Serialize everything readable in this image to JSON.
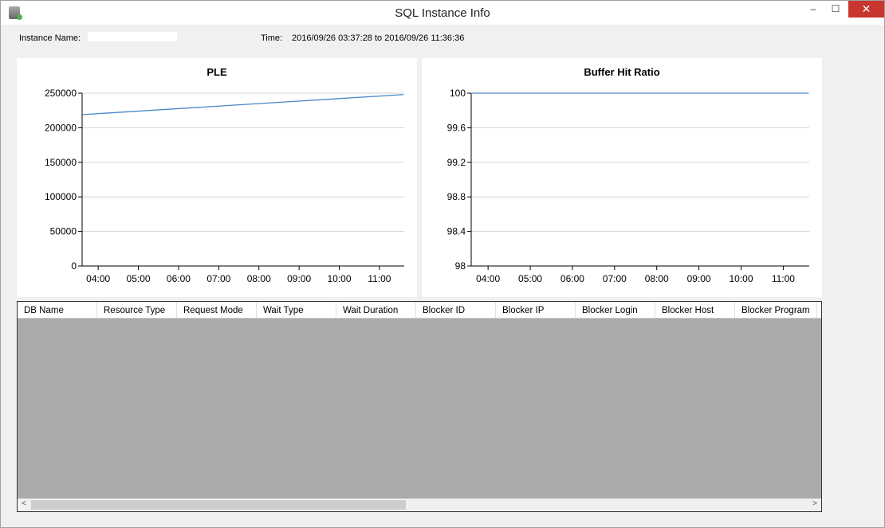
{
  "window": {
    "title": "SQL Instance Info",
    "minimize": "‒",
    "maximize": "☐",
    "close": "✕"
  },
  "header": {
    "instance_label": "Instance Name:",
    "instance_value": "",
    "time_label": "Time:",
    "time_value": "2016/09/26 03:37:28 to 2016/09/26 11:36:36"
  },
  "chart_data": [
    {
      "type": "line",
      "title": "PLE",
      "x_ticks": [
        "04:00",
        "05:00",
        "06:00",
        "07:00",
        "08:00",
        "09:00",
        "10:00",
        "11:00"
      ],
      "y_ticks": [
        "0",
        "50000",
        "100000",
        "150000",
        "200000",
        "250000"
      ],
      "ylim": [
        0,
        250000
      ],
      "xlim": [
        "03:36",
        "11:37"
      ],
      "grid": "horizontal",
      "color": "#4a86c8",
      "series": [
        {
          "x": [
            "03:37",
            "11:36"
          ],
          "values": [
            219000,
            248000
          ]
        }
      ]
    },
    {
      "type": "line",
      "title": "Buffer Hit Ratio",
      "x_ticks": [
        "04:00",
        "05:00",
        "06:00",
        "07:00",
        "08:00",
        "09:00",
        "10:00",
        "11:00"
      ],
      "y_ticks": [
        "98",
        "98.4",
        "98.8",
        "99.2",
        "99.6",
        "100"
      ],
      "ylim": [
        98,
        100
      ],
      "xlim": [
        "03:36",
        "11:37"
      ],
      "grid": "horizontal",
      "color": "#4a86c8",
      "series": [
        {
          "x": [
            "03:37",
            "11:36"
          ],
          "values": [
            100,
            100
          ]
        }
      ]
    }
  ],
  "table": {
    "columns": [
      "DB Name",
      "Resource Type",
      "Request Mode",
      "Wait Type",
      "Wait Duration",
      "Blocker ID",
      "Blocker IP",
      "Blocker Login",
      "Blocker Host",
      "Blocker Program"
    ],
    "scroll_left": "<",
    "scroll_right": ">"
  }
}
